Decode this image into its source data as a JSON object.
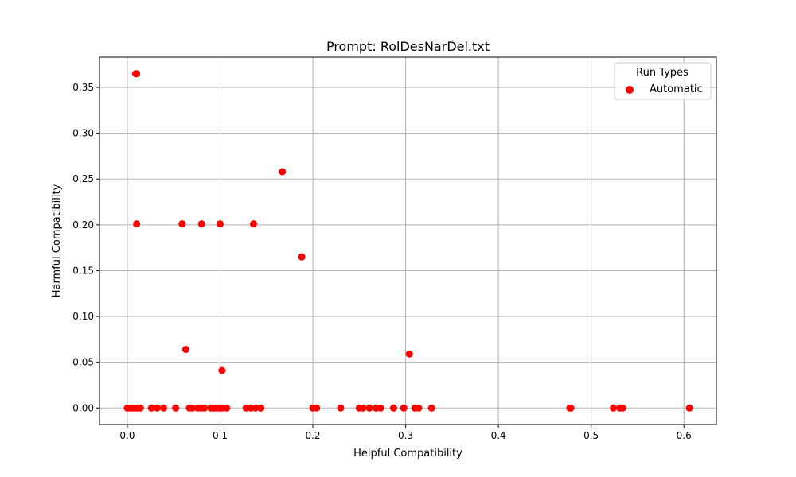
{
  "chart_data": {
    "type": "scatter",
    "title": "Prompt: RolDesNarDel.txt",
    "xlabel": "Helpful Compatibility",
    "ylabel": "Harmful Compatibility",
    "xlim": [
      -0.03,
      0.635
    ],
    "ylim": [
      -0.018,
      0.383
    ],
    "xticks": [
      0.0,
      0.1,
      0.2,
      0.3,
      0.4,
      0.5,
      0.6
    ],
    "xtick_labels": [
      "0.0",
      "0.1",
      "0.2",
      "0.3",
      "0.4",
      "0.5",
      "0.6"
    ],
    "yticks": [
      0.0,
      0.05,
      0.1,
      0.15,
      0.2,
      0.25,
      0.3,
      0.35
    ],
    "ytick_labels": [
      "0.00",
      "0.05",
      "0.10",
      "0.15",
      "0.20",
      "0.25",
      "0.30",
      "0.35"
    ],
    "grid": true,
    "legend": {
      "title": "Run Types",
      "placement": "top-right"
    },
    "series": [
      {
        "name": "Automatic",
        "color": "#ff0000",
        "points": [
          [
            0.009,
            0.365
          ],
          [
            0.01,
            0.365
          ],
          [
            0.167,
            0.258
          ],
          [
            0.01,
            0.201
          ],
          [
            0.059,
            0.201
          ],
          [
            0.08,
            0.201
          ],
          [
            0.1,
            0.201
          ],
          [
            0.136,
            0.201
          ],
          [
            0.188,
            0.165
          ],
          [
            0.063,
            0.064
          ],
          [
            0.304,
            0.059
          ],
          [
            0.102,
            0.041
          ],
          [
            0.0,
            0.0
          ],
          [
            0.003,
            0.0
          ],
          [
            0.006,
            0.0
          ],
          [
            0.009,
            0.0
          ],
          [
            0.012,
            0.0
          ],
          [
            0.014,
            0.0
          ],
          [
            0.026,
            0.0
          ],
          [
            0.032,
            0.0
          ],
          [
            0.039,
            0.0
          ],
          [
            0.052,
            0.0
          ],
          [
            0.067,
            0.0
          ],
          [
            0.07,
            0.0
          ],
          [
            0.076,
            0.0
          ],
          [
            0.08,
            0.0
          ],
          [
            0.083,
            0.0
          ],
          [
            0.09,
            0.0
          ],
          [
            0.093,
            0.0
          ],
          [
            0.096,
            0.0
          ],
          [
            0.099,
            0.0
          ],
          [
            0.102,
            0.0
          ],
          [
            0.107,
            0.0
          ],
          [
            0.128,
            0.0
          ],
          [
            0.133,
            0.0
          ],
          [
            0.138,
            0.0
          ],
          [
            0.144,
            0.0
          ],
          [
            0.2,
            0.0
          ],
          [
            0.204,
            0.0
          ],
          [
            0.23,
            0.0
          ],
          [
            0.25,
            0.0
          ],
          [
            0.254,
            0.0
          ],
          [
            0.261,
            0.0
          ],
          [
            0.268,
            0.0
          ],
          [
            0.273,
            0.0
          ],
          [
            0.287,
            0.0
          ],
          [
            0.298,
            0.0
          ],
          [
            0.31,
            0.0
          ],
          [
            0.314,
            0.0
          ],
          [
            0.328,
            0.0
          ],
          [
            0.477,
            0.0
          ],
          [
            0.478,
            0.0
          ],
          [
            0.524,
            0.0
          ],
          [
            0.531,
            0.0
          ],
          [
            0.534,
            0.0
          ],
          [
            0.606,
            0.0
          ]
        ]
      }
    ]
  }
}
